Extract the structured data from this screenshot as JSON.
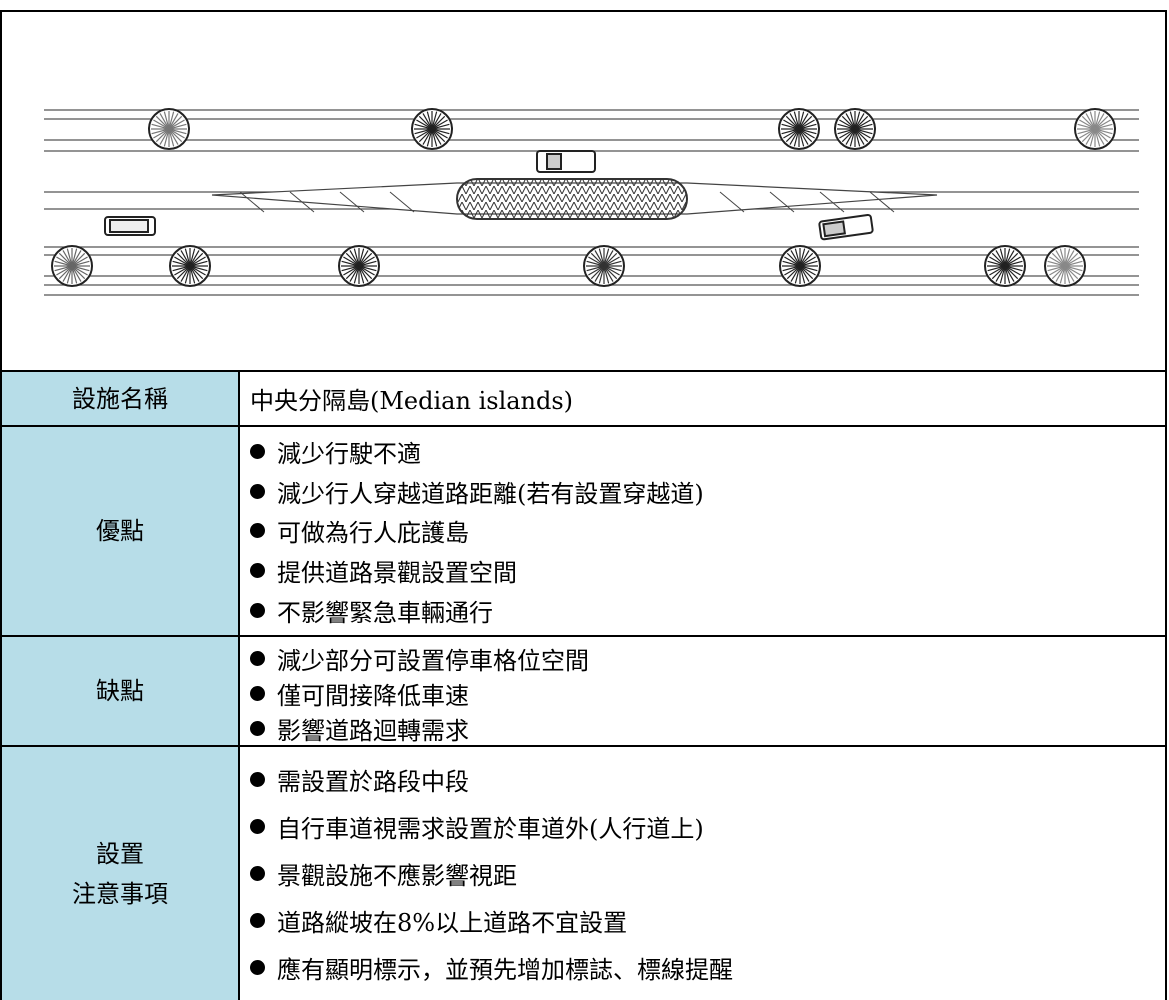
{
  "table": {
    "rows": [
      {
        "label": [
          "設施名稱"
        ],
        "value": "中央分隔島(Median islands)"
      },
      {
        "label": [
          "優點"
        ],
        "items": [
          "減少行駛不適",
          "減少行人穿越道路距離(若有設置穿越道)",
          "可做為行人庇護島",
          "提供道路景觀設置空間",
          "不影響緊急車輛通行"
        ]
      },
      {
        "label": [
          "缺點"
        ],
        "items": [
          "減少部分可設置停車格位空間",
          "僅可間接降低車速",
          "影響道路迴轉需求"
        ]
      },
      {
        "label": [
          "設置",
          "注意事項"
        ],
        "items": [
          "需設置於路段中段",
          "自行車道視需求設置於車道外(人行道上)",
          "景觀設施不應影響視距",
          "道路縱坡在8%以上道路不宜設置",
          "應有顯明標示，並預先增加標誌、標線提醒"
        ]
      }
    ]
  }
}
